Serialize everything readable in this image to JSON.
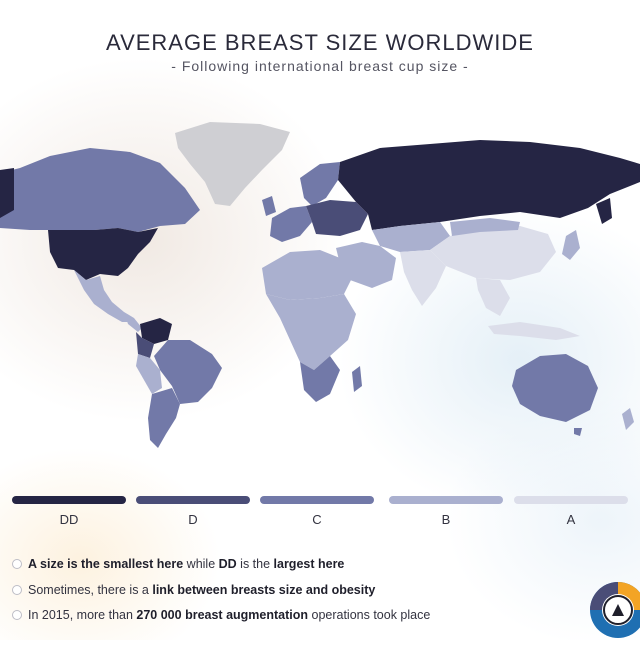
{
  "header": {
    "title": "AVERAGE BREAST SIZE WORLDWIDE",
    "subtitle": "- Following international breast cup size -"
  },
  "legend": {
    "items": [
      {
        "label": "DD",
        "color": "#252544"
      },
      {
        "label": "D",
        "color": "#4a4d77"
      },
      {
        "label": "C",
        "color": "#7279a8"
      },
      {
        "label": "B",
        "color": "#aab0cf"
      },
      {
        "label": "A",
        "color": "#dcdeea"
      }
    ],
    "no_data_color": "#cfcfd3"
  },
  "regions": {
    "usa": "DD",
    "russia": "DD",
    "venezuela": "DD",
    "canada": "C",
    "australia": "C",
    "brazil": "C",
    "argentina": "C",
    "central_europe": "D",
    "mexico": "B",
    "africa": "B",
    "middle_east": "B",
    "south_america": "B",
    "europe_west": "C",
    "china": "A",
    "india": "A",
    "southeast_asia": "A",
    "central_asia": "B",
    "japan": "B",
    "greenland": "no data"
  },
  "notes": [
    {
      "parts": [
        {
          "text": "A size is the ",
          "bold": true
        },
        {
          "text": "smallest here",
          "bold": true
        },
        {
          "text": " while ",
          "bold": false
        },
        {
          "text": "DD",
          "bold": true
        },
        {
          "text": " is the ",
          "bold": false
        },
        {
          "text": "largest here",
          "bold": true
        }
      ]
    },
    {
      "parts": [
        {
          "text": "Sometimes, there is a ",
          "bold": false
        },
        {
          "text": "link between breasts size and obesity",
          "bold": true
        }
      ]
    },
    {
      "parts": [
        {
          "text": "In 2015, more than ",
          "bold": false
        },
        {
          "text": "270 000",
          "bold": true
        },
        {
          "text": " ",
          "bold": false
        },
        {
          "text": "breast augmentation",
          "bold": true
        },
        {
          "text": " operations took place",
          "bold": false
        }
      ]
    }
  ]
}
